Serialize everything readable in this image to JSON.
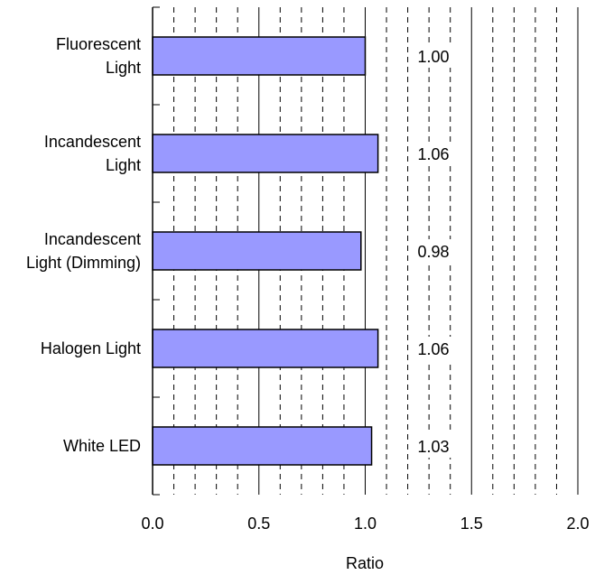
{
  "chart_data": {
    "type": "bar",
    "orientation": "horizontal",
    "categories": [
      [
        "Fluorescent",
        "Light"
      ],
      [
        "Incandescent",
        "Light"
      ],
      [
        "Incandescent",
        "Light (Dimming)"
      ],
      [
        "Halogen Light"
      ],
      [
        "White LED"
      ]
    ],
    "values": [
      1.0,
      1.06,
      0.98,
      1.06,
      1.03
    ],
    "data_labels": [
      "1.00",
      "1.06",
      "0.98",
      "1.06",
      "1.03"
    ],
    "title": "",
    "xlabel": "Ratio",
    "ylabel": "",
    "xlim": [
      0.0,
      2.0
    ],
    "major_ticks": [
      0.0,
      0.5,
      1.0,
      1.5,
      2.0
    ],
    "major_tick_labels": [
      "0.0",
      "0.5",
      "1.0",
      "1.5",
      "2.0"
    ],
    "minor_grid_step": 0.1,
    "grid": true,
    "legend": "none",
    "colors": {
      "bar_fill": "#9999ff",
      "bar_stroke": "#000000",
      "grid_major": "#000000",
      "grid_minor": "#000000",
      "background": "#ffffff"
    }
  }
}
